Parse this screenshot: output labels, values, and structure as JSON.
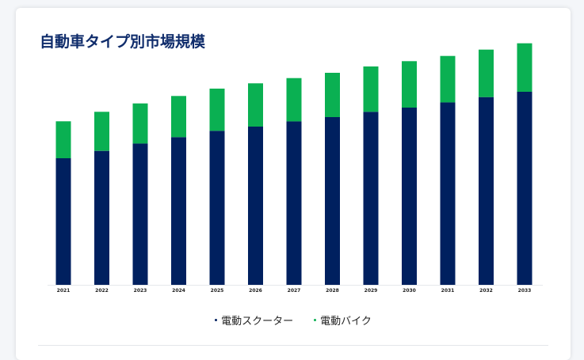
{
  "card": {
    "title": "自動車タイプ別市場規模"
  },
  "colors": {
    "scooter": "#00205f",
    "bike": "#0ab052",
    "title": "#0f2c6b"
  },
  "chart_data": {
    "type": "bar",
    "stacked": true,
    "title": "自動車タイプ別市場規模",
    "categories": [
      "2021",
      "2022",
      "2023",
      "2024",
      "2025",
      "2026",
      "2027",
      "2028",
      "2029",
      "2030",
      "2031",
      "2032",
      "2033"
    ],
    "series": [
      {
        "name": "電動スクーター",
        "values": [
          120,
          127,
          134,
          140,
          146,
          150,
          155,
          159,
          164,
          168,
          173,
          178,
          183
        ]
      },
      {
        "name": "電動バイク",
        "values": [
          35,
          37,
          38,
          39,
          40,
          41,
          41,
          42,
          43,
          44,
          44,
          45,
          46
        ]
      }
    ],
    "xlabel": "",
    "ylabel": "",
    "ylim": [
      0,
      240
    ],
    "grid": false,
    "legend": "bottom-center"
  }
}
